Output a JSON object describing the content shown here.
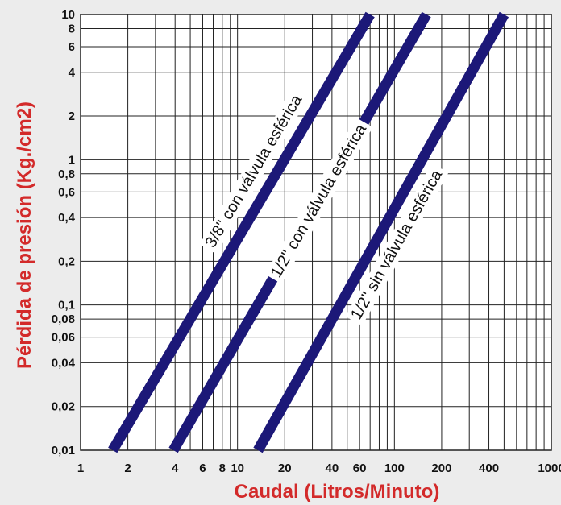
{
  "chart_data": {
    "type": "line",
    "xscale": "log",
    "yscale": "log",
    "xlabel": "Caudal (Litros/Minuto)",
    "ylabel": "Pérdida de presión (Kg./cm2)",
    "xlim": [
      1,
      1000
    ],
    "ylim": [
      0.01,
      10
    ],
    "grid": true,
    "xticks": [
      {
        "value": 1,
        "label": "1"
      },
      {
        "value": 2,
        "label": "2"
      },
      {
        "value": 4,
        "label": "4"
      },
      {
        "value": 6,
        "label": "6"
      },
      {
        "value": 8,
        "label": "8"
      },
      {
        "value": 10,
        "label": "10"
      },
      {
        "value": 20,
        "label": "20"
      },
      {
        "value": 40,
        "label": "40"
      },
      {
        "value": 60,
        "label": "60"
      },
      {
        "value": 100,
        "label": "100"
      },
      {
        "value": 200,
        "label": "200"
      },
      {
        "value": 400,
        "label": "400"
      },
      {
        "value": 1000,
        "label": "1000"
      }
    ],
    "yticks": [
      {
        "value": 0.01,
        "label": "0,01"
      },
      {
        "value": 0.02,
        "label": "0,02"
      },
      {
        "value": 0.04,
        "label": "0,04"
      },
      {
        "value": 0.06,
        "label": "0,06"
      },
      {
        "value": 0.08,
        "label": "0,08"
      },
      {
        "value": 0.1,
        "label": "0,1"
      },
      {
        "value": 0.2,
        "label": "0,2"
      },
      {
        "value": 0.4,
        "label": "0,4"
      },
      {
        "value": 0.6,
        "label": "0,6"
      },
      {
        "value": 0.8,
        "label": "0,8"
      },
      {
        "value": 1,
        "label": "1"
      },
      {
        "value": 2,
        "label": "2"
      },
      {
        "value": 4,
        "label": "4"
      },
      {
        "value": 6,
        "label": "6"
      },
      {
        "value": 8,
        "label": "8"
      },
      {
        "value": 10,
        "label": "10"
      }
    ],
    "xgrid": [
      1,
      2,
      3,
      4,
      5,
      6,
      7,
      8,
      9,
      10,
      20,
      30,
      40,
      50,
      60,
      70,
      80,
      90,
      100,
      200,
      300,
      400,
      500,
      600,
      700,
      800,
      900,
      1000
    ],
    "ygrid": [
      0.01,
      0.02,
      0.04,
      0.06,
      0.08,
      0.1,
      0.2,
      0.4,
      0.6,
      0.8,
      1,
      2,
      4,
      6,
      8,
      10
    ],
    "series": [
      {
        "name": "3/8\" con válvula esférica",
        "x": [
          1.6,
          70
        ],
        "y": [
          0.01,
          10
        ],
        "color": "#1c1878",
        "label_at": [
          13.5,
          0.8
        ]
      },
      {
        "name": "1/2\" con válvula esférica",
        "x": [
          3.9,
          160
        ],
        "y": [
          0.01,
          10
        ],
        "color": "#1c1878",
        "label_at": [
          35,
          0.5
        ]
      },
      {
        "name": "1/2\" sin válvula esférica",
        "x": [
          13.5,
          500
        ],
        "y": [
          0.01,
          10
        ],
        "color": "#1c1878",
        "label_at": [
          110,
          0.25
        ]
      }
    ]
  }
}
